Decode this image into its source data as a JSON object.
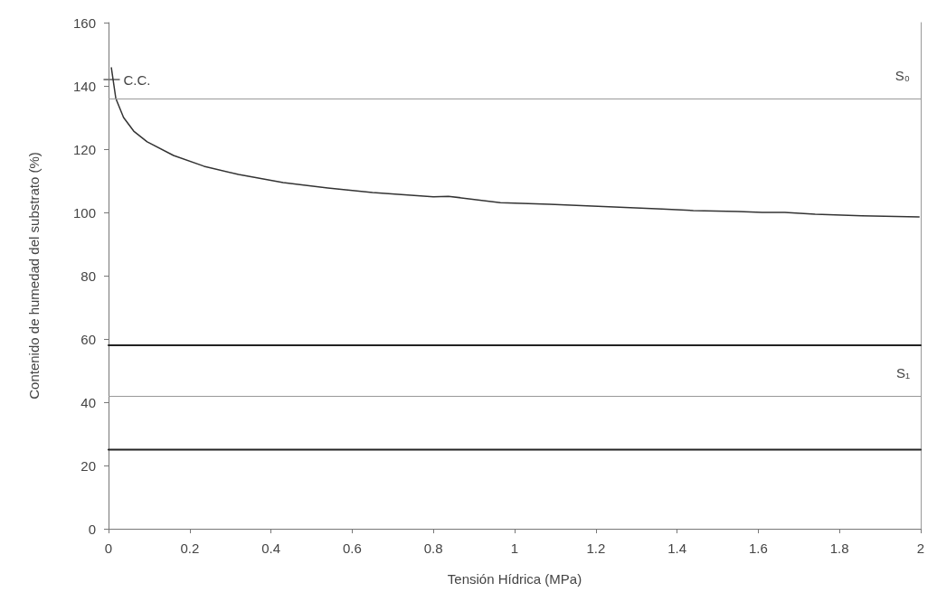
{
  "chart_data": {
    "type": "line",
    "xlabel": "Tensión Hídrica (MPa)",
    "ylabel": "Contenido de humedad del substrato (%)",
    "series": [
      {
        "color": "#333333",
        "x": [
          0.007,
          0.018,
          0.037,
          0.062,
          0.095,
          0.16,
          0.235,
          0.32,
          0.43,
          0.54,
          0.65,
          0.8,
          0.837,
          0.965,
          1.086,
          1.245,
          1.363,
          1.44,
          1.55,
          1.61,
          1.665,
          1.74,
          1.855,
          1.996
        ],
        "values": [
          145.7,
          136,
          130,
          125.7,
          122.3,
          118,
          114.6,
          112,
          109.4,
          107.7,
          106.3,
          104.9,
          105.1,
          103.1,
          102.6,
          101.7,
          101.1,
          100.6,
          100.3,
          100,
          100,
          99.4,
          98.9,
          98.6
        ]
      },
      {
        "color": "#222222",
        "x": [
          0,
          2
        ],
        "values": [
          58,
          58
        ]
      },
      {
        "color": "#222222",
        "x": [
          0,
          2
        ],
        "values": [
          25,
          25
        ]
      }
    ],
    "ref_lines": [
      {
        "axis": "y",
        "value": 136,
        "label": "S₀",
        "color": "#999999"
      },
      {
        "axis": "y",
        "value": 42,
        "label": "S₁",
        "color": "#999999"
      }
    ],
    "annotations": [
      {
        "text": "C.C.",
        "x": 0.01,
        "y": 142
      }
    ],
    "xlim": [
      0,
      2
    ],
    "xticks": [
      0,
      0.2,
      0.4,
      0.6,
      0.8,
      1,
      1.2,
      1.4,
      1.6,
      1.8,
      2
    ],
    "ylim": [
      0,
      160
    ],
    "yticks": [
      0,
      20,
      40,
      60,
      80,
      100,
      120,
      140,
      160
    ],
    "grid": false,
    "marker": "none",
    "line_style": "solid"
  }
}
